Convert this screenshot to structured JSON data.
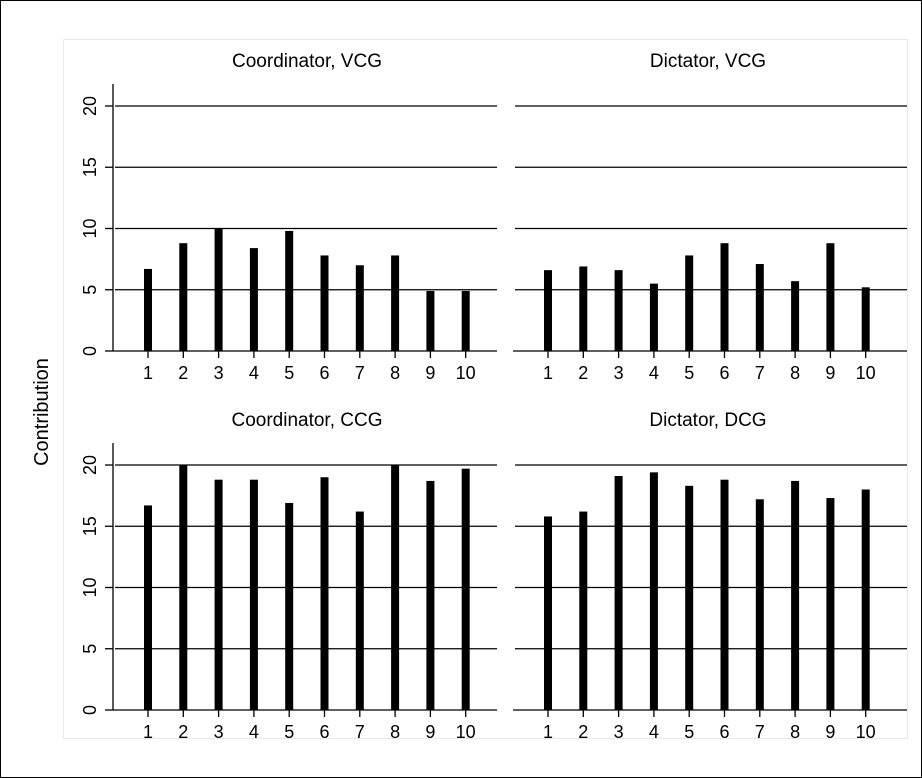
{
  "figure": {
    "ylabel": "Contribution"
  },
  "chart_data": [
    {
      "type": "bar",
      "title": "Coordinator, VCG",
      "categories": [
        "1",
        "2",
        "3",
        "4",
        "5",
        "6",
        "7",
        "8",
        "9",
        "10"
      ],
      "values": [
        6.7,
        8.8,
        10.0,
        8.4,
        9.8,
        7.8,
        7.0,
        7.8,
        4.9,
        4.9
      ],
      "ylim": [
        0,
        20
      ],
      "yticks": [
        0,
        5,
        10,
        15,
        20
      ],
      "grid": true,
      "bar_color": "#000000"
    },
    {
      "type": "bar",
      "title": "Dictator, VCG",
      "categories": [
        "1",
        "2",
        "3",
        "4",
        "5",
        "6",
        "7",
        "8",
        "9",
        "10"
      ],
      "values": [
        6.6,
        6.9,
        6.6,
        5.5,
        7.8,
        8.8,
        7.1,
        5.7,
        8.8,
        5.2
      ],
      "ylim": [
        0,
        20
      ],
      "yticks": [
        0,
        5,
        10,
        15,
        20
      ],
      "grid": true,
      "bar_color": "#000000"
    },
    {
      "type": "bar",
      "title": "Coordinator, CCG",
      "categories": [
        "1",
        "2",
        "3",
        "4",
        "5",
        "6",
        "7",
        "8",
        "9",
        "10"
      ],
      "values": [
        16.7,
        20.0,
        18.8,
        18.8,
        16.9,
        19.0,
        16.2,
        20.0,
        18.7,
        19.7
      ],
      "ylim": [
        0,
        20
      ],
      "yticks": [
        0,
        5,
        10,
        15,
        20
      ],
      "grid": true,
      "bar_color": "#000000"
    },
    {
      "type": "bar",
      "title": "Dictator, DCG",
      "categories": [
        "1",
        "2",
        "3",
        "4",
        "5",
        "6",
        "7",
        "8",
        "9",
        "10"
      ],
      "values": [
        15.8,
        16.2,
        19.1,
        19.4,
        18.3,
        18.8,
        17.2,
        18.7,
        17.3,
        18.0
      ],
      "ylim": [
        0,
        20
      ],
      "yticks": [
        0,
        5,
        10,
        15,
        20
      ],
      "grid": true,
      "bar_color": "#000000"
    }
  ]
}
